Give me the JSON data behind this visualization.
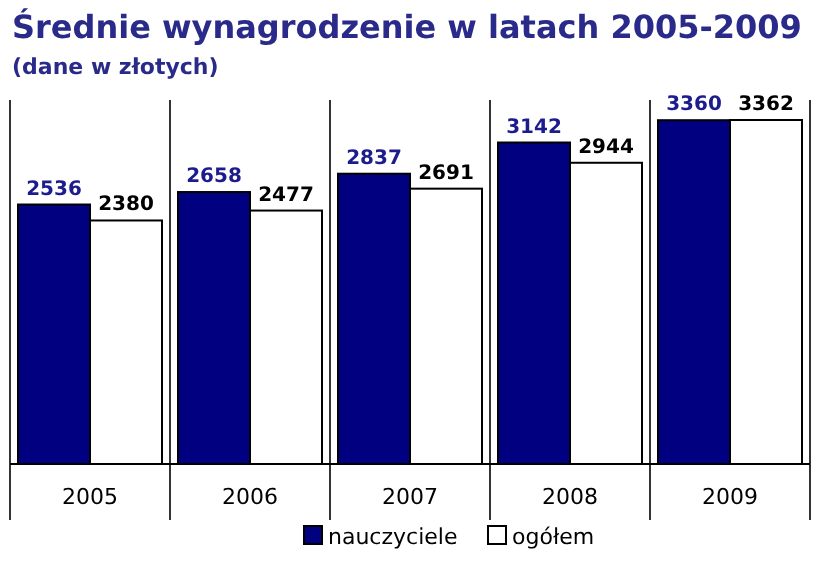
{
  "chart_data": {
    "type": "bar",
    "title": "Średnie wynagrodzenie w latach 2005-2009",
    "subtitle": "(dane w złotych)",
    "categories": [
      "2005",
      "2006",
      "2007",
      "2008",
      "2009"
    ],
    "series": [
      {
        "name": "nauczyciele",
        "color": "#000080",
        "values": [
          2536,
          2658,
          2837,
          3142,
          3360
        ]
      },
      {
        "name": "ogółem",
        "color": "#ffffff",
        "values": [
          2380,
          2477,
          2691,
          2944,
          3362
        ]
      }
    ],
    "data_labels": true,
    "legend": "bottom",
    "grid": "x"
  }
}
